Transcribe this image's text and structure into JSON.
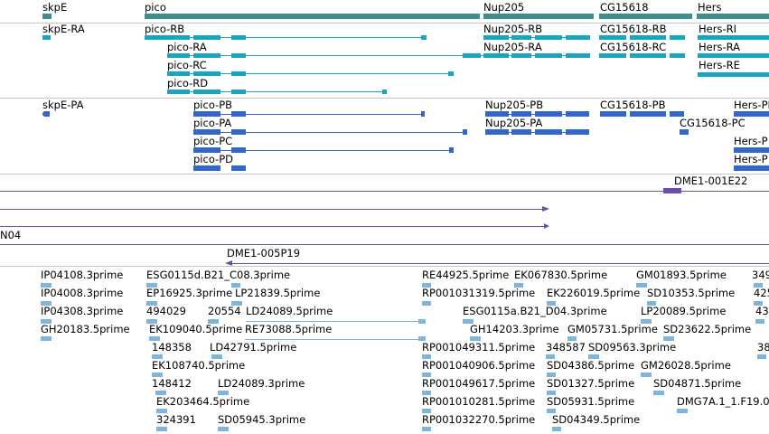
{
  "colors": {
    "gene": "#3d8f8f",
    "transcript": "#1aa5be",
    "protein": "#3366cc",
    "clone": "#6e4fa8",
    "est": "#7fb4db",
    "divider": "#c6c6c6"
  },
  "genes": [
    {
      "label": "skpE"
    },
    {
      "label": "pico"
    },
    {
      "label": "Nup205"
    },
    {
      "label": "CG15618"
    },
    {
      "label": "Hers"
    }
  ],
  "transcripts": [
    {
      "label": "skpE-RA"
    },
    {
      "label": "pico-RB"
    },
    {
      "label": "pico-RA"
    },
    {
      "label": "pico-RC"
    },
    {
      "label": "pico-RD"
    },
    {
      "label": "Nup205-RB"
    },
    {
      "label": "Nup205-RA"
    },
    {
      "label": "CG15618-RB"
    },
    {
      "label": "CG15618-RC"
    },
    {
      "label": "Hers-RI"
    },
    {
      "label": "Hers-RA"
    },
    {
      "label": "Hers-RE"
    }
  ],
  "proteins": [
    {
      "label": "skpE-PA"
    },
    {
      "label": "pico-PB"
    },
    {
      "label": "pico-PA"
    },
    {
      "label": "pico-PC"
    },
    {
      "label": "pico-PD"
    },
    {
      "label": "Nup205-PB"
    },
    {
      "label": "Nup205-PA"
    },
    {
      "label": "CG15618-PB"
    },
    {
      "label": "CG15618-PC"
    },
    {
      "label": "Hers-PI"
    },
    {
      "label": "Hers-P"
    },
    {
      "label": "Hers-P"
    }
  ],
  "clones": [
    {
      "label": "DME1-001E22"
    },
    {
      "label": "N04"
    },
    {
      "label": "DME1-005P19"
    }
  ],
  "ests": [
    "IP04108.3prime",
    "IP04008.3prime",
    "IP04308.3prime",
    "GH20183.5prime",
    "ESG0115d.B21_C08.3prime",
    "EP16925.3prime",
    "LP21839.5prime",
    "494029",
    "20554",
    "LD24089.5prime",
    "RE73088.5prime",
    "EK109040.5prime",
    "148358",
    "LD42791.5prime",
    "EK108740.5prime",
    "148412",
    "LD24089.3prime",
    "EK203464.5prime",
    "324391",
    "SD05945.3prime",
    "RE44925.5prime",
    "EK067830.5prime",
    "RP001031319.5prime",
    "EK226019.5prime",
    "ESG0115a.B21_D04.3prime",
    "GH14203.3prime",
    "GM05731.5prime",
    "RP001049311.5prime",
    "348587",
    "SD09563.3prime",
    "RP001040906.5prime",
    "SD04386.5prime",
    "RP001049617.5prime",
    "SD01327.5prime",
    "RP001010281.5prime",
    "SD05931.5prime",
    "RP001032270.5prime",
    "SD04349.5prime",
    "GM01893.5prime",
    "SD10353.5prime",
    "LP20089.5prime",
    "SD23622.5prime",
    "GM26028.5prime",
    "SD04871.5prime",
    "DMG7A.1_1.F19.0",
    "349",
    "425",
    "43",
    "38"
  ]
}
